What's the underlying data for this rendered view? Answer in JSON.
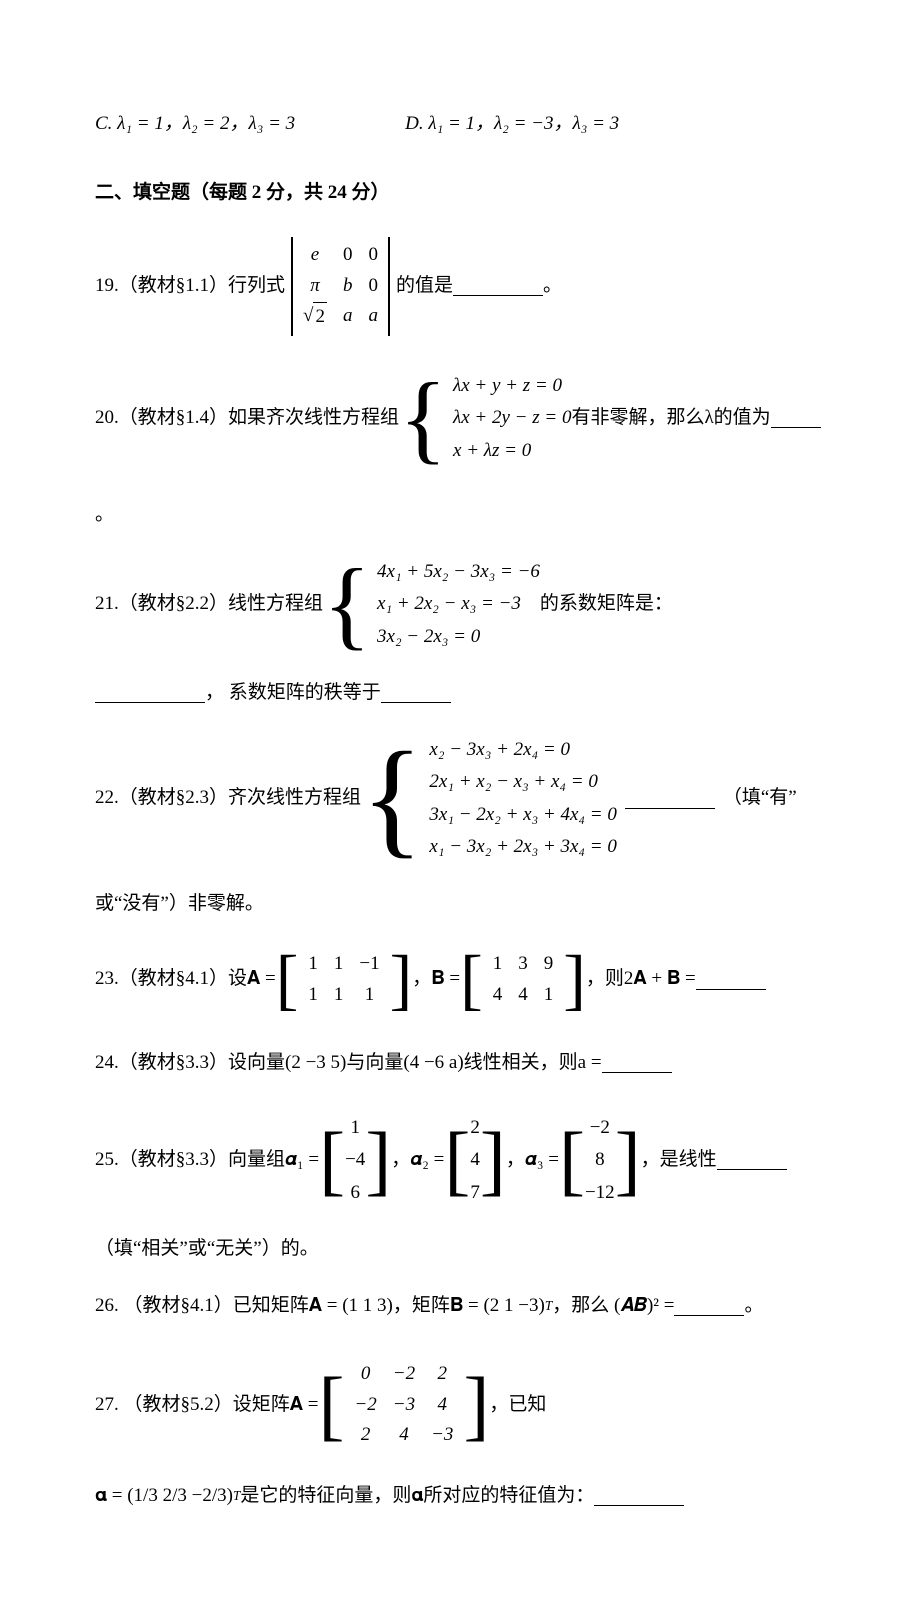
{
  "q18": {
    "optC": "C. λ₁ = 1，λ₂ = 2，λ₃ = 3",
    "optD": "D. λ₁ = 1，λ₂ = −3，λ₃ = 3"
  },
  "sectionII": "二、填空题（每题 2 分，共 24 分）",
  "q19": {
    "lead": "19.（教材§1.1）行列式",
    "det": [
      [
        "e",
        "0",
        "0"
      ],
      [
        "π",
        "b",
        "0"
      ],
      [
        "√2",
        "a",
        "a"
      ]
    ],
    "tail1": "的值是",
    "tail2": "。"
  },
  "q20": {
    "lead": "20.（教材§1.4）如果齐次线性方程组",
    "eqs": [
      "λx + y + z = 0",
      "λx + 2y − z = 0",
      "x + λz = 0"
    ],
    "tail1": "有非零解，那么λ的值为",
    "tail2": "。"
  },
  "q21": {
    "lead": "21.（教材§2.2）线性方程组",
    "eqs": [
      "4x₁ + 5x₂ − 3x₃ = −6",
      "x₁ + 2x₂ − x₃ = −3",
      "3x₂ − 2x₃ = 0"
    ],
    "tail1": " 的系数矩阵是：",
    "cont": "， 系数矩阵的秩等于"
  },
  "q22": {
    "lead": "22.（教材§2.3）齐次线性方程组",
    "eqs": [
      "x₂ − 3x₃ + 2x₄ = 0",
      "2x₁ + x₂ − x₃ + x₄ = 0",
      "3x₁ − 2x₂ + x₃ + 4x₄ = 0",
      "x₁ − 3x₂ + 2x₃ + 3x₄ = 0"
    ],
    "tail1": "（填“有”",
    "cont": "或“没有”）非零解。"
  },
  "q23": {
    "lead": "23.（教材§4.1）设𝐀 =",
    "A": [
      [
        "1",
        "1",
        "−1"
      ],
      [
        "1",
        "1",
        "1"
      ]
    ],
    "mid": "，𝐁 =",
    "B": [
      [
        "1",
        "3",
        "9"
      ],
      [
        "4",
        "4",
        "1"
      ]
    ],
    "tail": "，则2𝐀 + 𝐁 ="
  },
  "q24": {
    "text": "24.（教材§3.3）设向量(2  −3  5)与向量(4  −6  a)线性相关，则a ="
  },
  "q25": {
    "lead": "25.（教材§3.3）向量组𝜶₁ =",
    "a1": [
      "1",
      "−4",
      "6"
    ],
    "mid1": "，𝜶₂ =",
    "a2": [
      "2",
      "4",
      "7"
    ],
    "mid2": "，𝜶₃ =",
    "a3": [
      "−2",
      "8",
      "−12"
    ],
    "tail": "，是线性",
    "cont": "（填“相关”或“无关”）的。"
  },
  "q26": {
    "line1a": "26. （教材§4.1）已知矩阵𝐀 = (1  1  3)，矩阵𝐁 = (2  1  −3)",
    "line1b": "，那么",
    "sup": "T",
    "line2a": "(𝑨𝑩)² =",
    "line2b": "。"
  },
  "q27": {
    "lead": "27. （教材§5.2）设矩阵𝐀 =",
    "A": [
      [
        "0",
        "−2",
        "2"
      ],
      [
        "−2",
        "−3",
        "4"
      ],
      [
        "2",
        "4",
        "−3"
      ]
    ],
    "tail": "，已知",
    "line2a": "𝛂 = (1/3  2/3  −2/3)",
    "sup": "T",
    "line2b": "是它的特征向量，则𝛂所对应的特征值为："
  }
}
